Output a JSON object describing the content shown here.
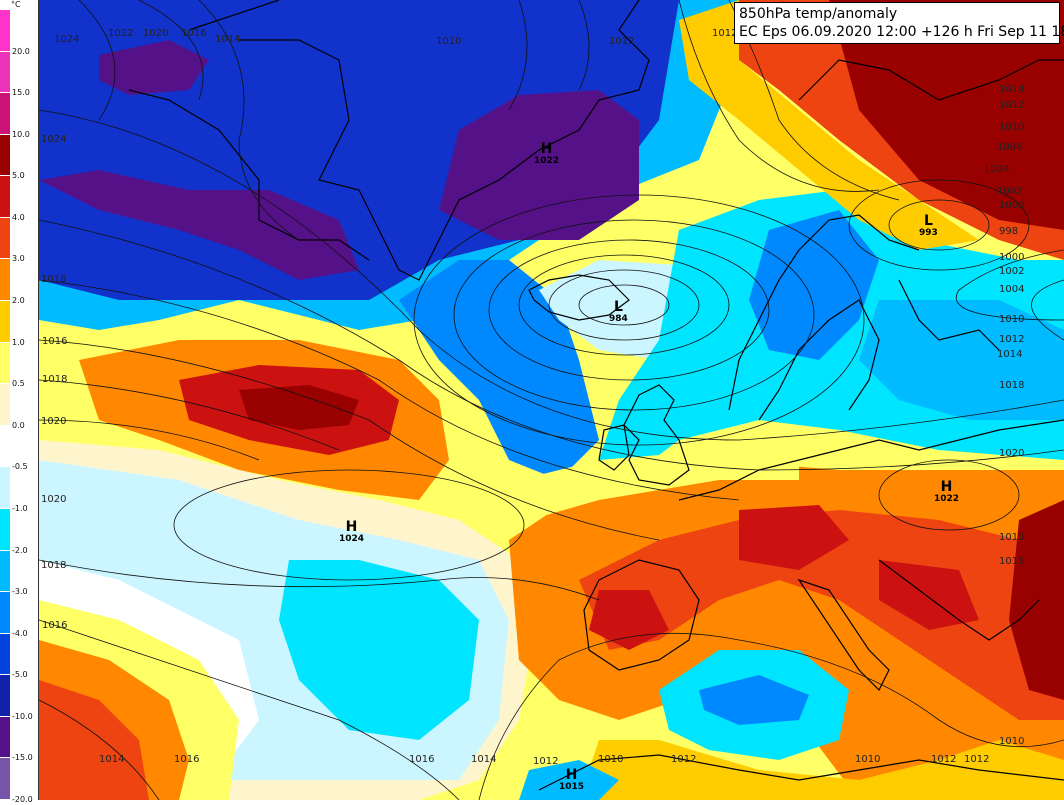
{
  "title": {
    "line1": "850hPa temp/anomaly",
    "line2": "EC Eps 06.09.2020 12:00 +126 h Fri Sep 11 18h"
  },
  "legend": {
    "unit": "°C",
    "bins": [
      {
        "label": "20.0",
        "color": "#ff33cc"
      },
      {
        "label": "15.0",
        "color": "#ee33bb"
      },
      {
        "label": "10.0",
        "color": "#cc1177"
      },
      {
        "label": "5.0",
        "color": "#990000"
      },
      {
        "label": "4.0",
        "color": "#cc1111"
      },
      {
        "label": "3.0",
        "color": "#ee4411"
      },
      {
        "label": "2.0",
        "color": "#ff8800"
      },
      {
        "label": "1.0",
        "color": "#ffcc00"
      },
      {
        "label": "0.5",
        "color": "#ffff66"
      },
      {
        "label": "0.0",
        "color": "#fff5cc"
      },
      {
        "label": "-0.5",
        "color": "#ffffff"
      },
      {
        "label": "-1.0",
        "color": "#ccf6ff"
      },
      {
        "label": "-2.0",
        "color": "#00e5ff"
      },
      {
        "label": "-3.0",
        "color": "#00bbff"
      },
      {
        "label": "-4.0",
        "color": "#0088ff"
      },
      {
        "label": "-5.0",
        "color": "#0044dd"
      },
      {
        "label": "-10.0",
        "color": "#1122aa"
      },
      {
        "label": "-15.0",
        "color": "#551188"
      },
      {
        "label": "-20.0",
        "color": "#7755aa"
      }
    ]
  },
  "pressure_labels": [
    {
      "text": "1024"
    },
    {
      "text": "1022"
    },
    {
      "text": "1020"
    },
    {
      "text": "1016"
    },
    {
      "text": "1014"
    },
    {
      "text": "1010"
    },
    {
      "text": "1012"
    },
    {
      "text": "1012"
    },
    {
      "text": "1024"
    },
    {
      "text": "1018"
    },
    {
      "text": "1016"
    },
    {
      "text": "1018"
    },
    {
      "text": "1020"
    },
    {
      "text": "1020"
    },
    {
      "text": "1018"
    },
    {
      "text": "1016"
    },
    {
      "text": "1014"
    },
    {
      "text": "1016"
    },
    {
      "text": "1016"
    },
    {
      "text": "1014"
    },
    {
      "text": "1012"
    },
    {
      "text": "1010"
    },
    {
      "text": "1012"
    },
    {
      "text": "1010"
    },
    {
      "text": "1012"
    },
    {
      "text": "1012"
    },
    {
      "text": "1014"
    },
    {
      "text": "1012"
    },
    {
      "text": "1010"
    },
    {
      "text": "1008"
    },
    {
      "text": "1004"
    },
    {
      "text": "1002"
    },
    {
      "text": "1000"
    },
    {
      "text": "998"
    },
    {
      "text": "1000"
    },
    {
      "text": "1002"
    },
    {
      "text": "1004"
    },
    {
      "text": "1010"
    },
    {
      "text": "1012"
    },
    {
      "text": "1014"
    },
    {
      "text": "1018"
    },
    {
      "text": "1020"
    },
    {
      "text": "1018"
    },
    {
      "text": "1016"
    },
    {
      "text": "1010"
    }
  ],
  "centers": [
    {
      "type": "H",
      "value": "1022"
    },
    {
      "type": "L",
      "value": "984"
    },
    {
      "type": "L",
      "value": "993"
    },
    {
      "type": "H",
      "value": "1024"
    },
    {
      "type": "H",
      "value": "1022"
    },
    {
      "type": "H",
      "value": "1015"
    }
  ]
}
